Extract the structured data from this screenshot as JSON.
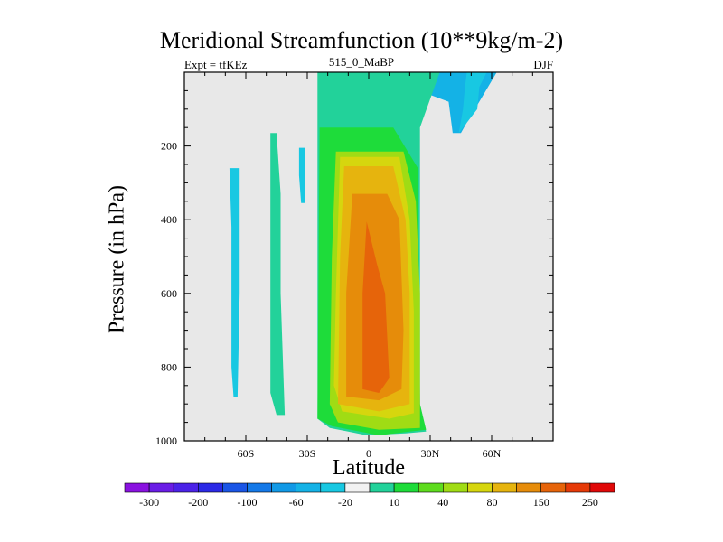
{
  "chart_data": {
    "type": "heatmap",
    "title": "Meridional Streamfunction (10**9kg/m-2)",
    "left_label": "Expt = tfKEz",
    "center_label": "515_0_MaBP",
    "right_label": "DJF",
    "xlabel": "Latitude",
    "ylabel": "Pressure (in hPa)",
    "x_range": [
      -90,
      90
    ],
    "y_range": [
      1000,
      0
    ],
    "x_ticks": [
      {
        "value": -60,
        "label": "60S"
      },
      {
        "value": -30,
        "label": "30S"
      },
      {
        "value": 0,
        "label": "0"
      },
      {
        "value": 30,
        "label": "30N"
      },
      {
        "value": 60,
        "label": "60N"
      }
    ],
    "y_ticks": [
      {
        "value": 200,
        "label": "200"
      },
      {
        "value": 400,
        "label": "400"
      },
      {
        "value": 600,
        "label": "600"
      },
      {
        "value": 800,
        "label": "800"
      },
      {
        "value": 1000,
        "label": "1000"
      }
    ],
    "background_color": "#e8e8e8",
    "colorbar": {
      "colors": [
        "#8a12e0",
        "#6a1de6",
        "#4b22e8",
        "#2b29e6",
        "#1a55e6",
        "#1479e8",
        "#1199e6",
        "#14b2e6",
        "#18c8e2",
        "#f2f2f2",
        "#22d29a",
        "#1edc3a",
        "#5edc1e",
        "#a0dc14",
        "#d6d60e",
        "#e6b40e",
        "#e68c0a",
        "#e6640a",
        "#e63a08",
        "#e00808"
      ],
      "labels": [
        {
          "after_index": 0,
          "text": "-300"
        },
        {
          "after_index": 2,
          "text": "-200"
        },
        {
          "after_index": 4,
          "text": "-100"
        },
        {
          "after_index": 6,
          "text": "-60"
        },
        {
          "after_index": 8,
          "text": "-20"
        },
        {
          "after_index": 10,
          "text": "10"
        },
        {
          "after_index": 12,
          "text": "40"
        },
        {
          "after_index": 14,
          "text": "80"
        },
        {
          "after_index": 16,
          "text": "150"
        },
        {
          "after_index": 18,
          "text": "250"
        }
      ]
    },
    "contour_regions": [
      {
        "name": "north-tropical-cell",
        "color": "#14b2e6",
        "points": [
          [
            37,
            -5
          ],
          [
            -1,
            -3
          ],
          [
            39,
            80
          ],
          [
            41,
            165
          ],
          [
            45,
            165
          ],
          [
            48,
            135
          ],
          [
            55,
            70
          ],
          [
            63,
            -5
          ]
        ]
      },
      {
        "name": "north-tropical-core",
        "color": "#18c8e2",
        "points": [
          [
            48,
            -5
          ],
          [
            47,
            40
          ],
          [
            46,
            100
          ],
          [
            44,
            165
          ],
          [
            53,
            100
          ],
          [
            54,
            40
          ],
          [
            58,
            -5
          ]
        ]
      },
      {
        "name": "south-weak-cell",
        "color": "#18c8e2",
        "points": [
          [
            -68,
            260
          ],
          [
            -67,
            420
          ],
          [
            -67,
            600
          ],
          [
            -67,
            800
          ],
          [
            -66,
            880
          ],
          [
            -64,
            880
          ],
          [
            -63,
            600
          ],
          [
            -63,
            260
          ]
        ]
      },
      {
        "name": "mid-south-positive",
        "color": "#22d29a",
        "points": [
          [
            -48,
            165
          ],
          [
            -48,
            500
          ],
          [
            -48,
            870
          ],
          [
            -45,
            930
          ],
          [
            -41,
            930
          ],
          [
            -43,
            600
          ],
          [
            -43,
            330
          ],
          [
            -45,
            165
          ]
        ]
      },
      {
        "name": "thin-south-cell",
        "color": "#18c8e2",
        "points": [
          [
            -34,
            205
          ],
          [
            -34,
            280
          ],
          [
            -33,
            355
          ],
          [
            -31,
            355
          ],
          [
            -31,
            205
          ]
        ]
      },
      {
        "name": "hadley-10",
        "color": "#22d29a",
        "points": [
          [
            -25,
            -5
          ],
          [
            -25,
            940
          ],
          [
            -19,
            965
          ],
          [
            -1,
            985
          ],
          [
            18,
            980
          ],
          [
            28,
            975
          ],
          [
            25,
            900
          ],
          [
            25,
            150
          ],
          [
            35,
            -5
          ]
        ]
      },
      {
        "name": "hadley-40",
        "color": "#1edc3a",
        "points": [
          [
            -24,
            150
          ],
          [
            -25,
            940
          ],
          [
            -18,
            960
          ],
          [
            5,
            985
          ],
          [
            20,
            975
          ],
          [
            28,
            970
          ],
          [
            25,
            900
          ],
          [
            24,
            260
          ],
          [
            12,
            150
          ]
        ]
      },
      {
        "name": "hadley-80",
        "color": "#a0dc14",
        "points": [
          [
            -16,
            215
          ],
          [
            -18,
            500
          ],
          [
            -19,
            900
          ],
          [
            -15,
            950
          ],
          [
            5,
            970
          ],
          [
            25,
            965
          ],
          [
            25,
            600
          ],
          [
            23,
            350
          ],
          [
            17,
            215
          ]
        ]
      },
      {
        "name": "hadley-150",
        "color": "#d6d60e",
        "points": [
          [
            -14,
            230
          ],
          [
            -16,
            600
          ],
          [
            -17,
            850
          ],
          [
            -13,
            920
          ],
          [
            10,
            940
          ],
          [
            22,
            925
          ],
          [
            22,
            650
          ],
          [
            20,
            400
          ],
          [
            15,
            230
          ]
        ]
      },
      {
        "name": "hadley-250",
        "color": "#e6b40e",
        "points": [
          [
            -12,
            255
          ],
          [
            -14,
            500
          ],
          [
            -15,
            900
          ],
          [
            5,
            920
          ],
          [
            20,
            900
          ],
          [
            20,
            600
          ],
          [
            18,
            400
          ],
          [
            12,
            255
          ]
        ]
      },
      {
        "name": "hadley-core",
        "color": "#e68c0a",
        "points": [
          [
            -8,
            330
          ],
          [
            -11,
            600
          ],
          [
            -11,
            880
          ],
          [
            5,
            890
          ],
          [
            16,
            860
          ],
          [
            17,
            700
          ],
          [
            15,
            400
          ],
          [
            9,
            330
          ]
        ]
      },
      {
        "name": "hadley-max",
        "color": "#e6640a",
        "points": [
          [
            -1,
            405
          ],
          [
            -3,
            600
          ],
          [
            -3,
            860
          ],
          [
            5,
            870
          ],
          [
            10,
            830
          ],
          [
            8,
            600
          ],
          [
            4,
            520
          ]
        ]
      }
    ]
  }
}
